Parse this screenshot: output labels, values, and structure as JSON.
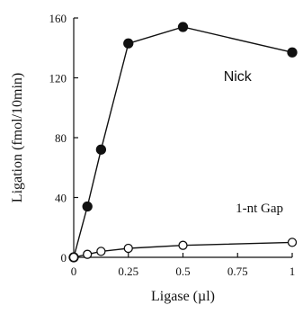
{
  "chart_data": {
    "type": "line",
    "xlabel": "Ligase (µl)",
    "ylabel": "Ligation (fmol/10min)",
    "xlim": [
      0,
      1
    ],
    "ylim": [
      0,
      160
    ],
    "x_ticks": [
      0,
      0.25,
      0.5,
      0.75,
      1
    ],
    "x_tick_labels": [
      "0",
      "0.25",
      "0.5",
      "0.75",
      "1"
    ],
    "y_ticks": [
      0,
      40,
      80,
      120,
      160
    ],
    "y_tick_labels": [
      "0",
      "40",
      "80",
      "120",
      "160"
    ],
    "grid": false,
    "series": [
      {
        "name": "Nick",
        "marker": "filled-circle",
        "x": [
          0,
          0.0625,
          0.125,
          0.25,
          0.5,
          1
        ],
        "y": [
          0,
          34,
          72,
          143,
          154,
          137
        ]
      },
      {
        "name": "1-nt Gap",
        "marker": "open-circle",
        "x": [
          0,
          0.0625,
          0.125,
          0.25,
          0.5,
          1
        ],
        "y": [
          0,
          2,
          4,
          6,
          8,
          10
        ]
      }
    ],
    "colors": {
      "line": "#111111",
      "marker_fill_filled": "#111111",
      "marker_fill_open": "#ffffff",
      "background": "#ffffff"
    }
  }
}
